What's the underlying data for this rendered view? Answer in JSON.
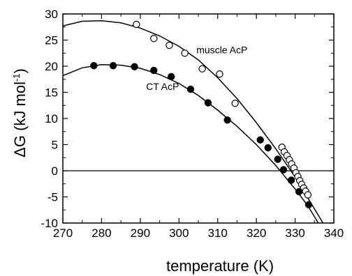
{
  "chart_data": {
    "type": "scatter",
    "xlabel": "temperature (K)",
    "ylabel_main": "ΔG (kJ mol",
    "ylabel_sup": "-1",
    "ylabel_close": ")",
    "xlim": [
      270,
      340
    ],
    "ylim": [
      -10,
      30
    ],
    "xticks": [
      270,
      280,
      290,
      300,
      310,
      320,
      330,
      340
    ],
    "yticks": [
      -10,
      -5,
      0,
      5,
      10,
      15,
      20,
      25,
      30
    ],
    "grid": false,
    "zero_line": 0,
    "annotations": [
      {
        "text": "muscle AcP",
        "x": 304.5,
        "y": 22.5
      },
      {
        "text": "CT AcP",
        "x": 291.5,
        "y": 15.5
      }
    ],
    "series": [
      {
        "marker": "open-circle",
        "points": [
          [
            289.0,
            28.0
          ],
          [
            293.5,
            25.3
          ],
          [
            297.5,
            24.0
          ],
          [
            301.5,
            22.5
          ],
          [
            306.0,
            19.5
          ],
          [
            310.5,
            18.5
          ],
          [
            314.5,
            12.9
          ],
          [
            326.6,
            4.5
          ],
          [
            327.2,
            3.6
          ],
          [
            327.9,
            2.9
          ],
          [
            328.5,
            2.1
          ],
          [
            329.1,
            1.3
          ],
          [
            329.7,
            0.5
          ],
          [
            330.2,
            -0.4
          ],
          [
            330.7,
            -1.1
          ],
          [
            331.2,
            -1.9
          ],
          [
            331.7,
            -2.6
          ],
          [
            332.2,
            -3.3
          ],
          [
            332.7,
            -3.9
          ],
          [
            333.3,
            -4.6
          ]
        ],
        "fit": [
          [
            270,
            27.7
          ],
          [
            275,
            28.6
          ],
          [
            280,
            28.7
          ],
          [
            285,
            28.3
          ],
          [
            290,
            27.3
          ],
          [
            295,
            25.8
          ],
          [
            300,
            23.8
          ],
          [
            305,
            21.2
          ],
          [
            310,
            17.8
          ],
          [
            315,
            13.8
          ],
          [
            320,
            9.2
          ],
          [
            325,
            4.2
          ],
          [
            330,
            -1.2
          ],
          [
            335,
            -7.3
          ],
          [
            337.2,
            -10
          ]
        ]
      },
      {
        "marker": "filled-circle",
        "points": [
          [
            278.0,
            20.1
          ],
          [
            283.0,
            20.1
          ],
          [
            288.5,
            19.9
          ],
          [
            293.5,
            19.2
          ],
          [
            298.0,
            18.0
          ],
          [
            303.0,
            15.6
          ],
          [
            307.5,
            13.0
          ],
          [
            312.5,
            9.7
          ],
          [
            321.0,
            5.9
          ],
          [
            323.0,
            4.4
          ],
          [
            325.5,
            2.2
          ],
          [
            327.0,
            0.2
          ],
          [
            329.0,
            -1.8
          ],
          [
            331.0,
            -4.0
          ],
          [
            333.5,
            -6.5
          ]
        ],
        "fit": [
          [
            270,
            18.2
          ],
          [
            275,
            19.7
          ],
          [
            280,
            20.3
          ],
          [
            285,
            20.2
          ],
          [
            290,
            19.6
          ],
          [
            295,
            18.4
          ],
          [
            300,
            16.7
          ],
          [
            305,
            14.4
          ],
          [
            310,
            11.6
          ],
          [
            315,
            8.5
          ],
          [
            320,
            5.0
          ],
          [
            325,
            1.0
          ],
          [
            330,
            -3.5
          ],
          [
            333.2,
            -6.6
          ],
          [
            336.0,
            -10
          ]
        ]
      }
    ]
  }
}
